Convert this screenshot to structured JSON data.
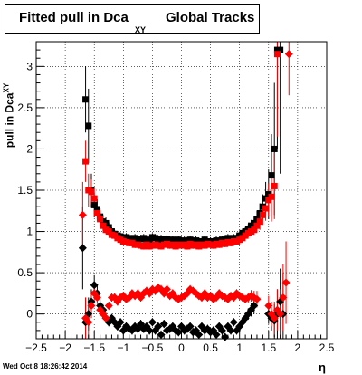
{
  "title": {
    "main": "Fitted pull in Dca",
    "sub": "XY",
    "rest": "Global Tracks"
  },
  "footer": "Wed Oct  8 18:26:42 2014",
  "colors": {
    "black_series": "#000000",
    "red_series": "#ff0000"
  },
  "chart_data": {
    "type": "scatter",
    "xlabel": "η",
    "ylabel_main": "pull in Dca",
    "ylabel_sub": "XY",
    "xlim": [
      -2.5,
      2.5
    ],
    "ylim": [
      -0.3,
      3.3
    ],
    "xticks": [
      -2.5,
      -2,
      -1.5,
      -1,
      -0.5,
      0,
      0.5,
      1,
      1.5,
      2,
      2.5
    ],
    "xtick_labels": [
      "−2.5",
      "−2",
      "−1.5",
      "−1",
      "−0.5",
      "0",
      "0.5",
      "1",
      "1.5",
      "2",
      "2.5"
    ],
    "yticks": [
      0,
      0.5,
      1,
      1.5,
      2,
      2.5,
      3
    ],
    "ytick_labels": [
      "0",
      "0.5",
      "1",
      "1.5",
      "2",
      "2.5",
      "3"
    ],
    "grid": true,
    "series": [
      {
        "marker": "square",
        "color": "#000000",
        "x": [
          -1.65,
          -1.6,
          -1.55,
          -1.5,
          -1.45,
          -1.4,
          -1.35,
          -1.3,
          -1.25,
          -1.2,
          -1.15,
          -1.1,
          -1.05,
          -1.0,
          -0.95,
          -0.9,
          -0.85,
          -0.8,
          -0.75,
          -0.7,
          -0.65,
          -0.6,
          -0.55,
          -0.5,
          -0.45,
          -0.4,
          -0.35,
          -0.3,
          -0.25,
          -0.2,
          -0.15,
          -0.1,
          -0.05,
          0.0,
          0.05,
          0.1,
          0.15,
          0.2,
          0.25,
          0.3,
          0.35,
          0.4,
          0.45,
          0.5,
          0.55,
          0.6,
          0.65,
          0.7,
          0.75,
          0.8,
          0.85,
          0.9,
          0.95,
          1.0,
          1.05,
          1.1,
          1.15,
          1.2,
          1.25,
          1.3,
          1.35,
          1.4,
          1.45,
          1.5,
          1.55,
          1.6,
          1.65,
          1.7
        ],
        "y": [
          2.6,
          2.28,
          1.5,
          1.32,
          1.27,
          1.18,
          1.12,
          1.1,
          1.05,
          1.0,
          0.97,
          0.95,
          0.94,
          0.92,
          0.93,
          0.92,
          0.9,
          0.92,
          0.9,
          0.91,
          0.92,
          0.9,
          0.88,
          0.93,
          0.92,
          0.9,
          0.91,
          0.9,
          0.91,
          0.89,
          0.9,
          0.88,
          0.9,
          0.88,
          0.89,
          0.88,
          0.9,
          0.87,
          0.89,
          0.88,
          0.87,
          0.9,
          0.86,
          0.88,
          0.87,
          0.89,
          0.88,
          0.9,
          0.9,
          0.92,
          0.9,
          0.92,
          0.92,
          0.95,
          0.98,
          1.0,
          1.03,
          1.07,
          1.1,
          1.15,
          1.22,
          1.3,
          1.4,
          1.45,
          1.68,
          2.0,
          3.2,
          3.2
        ],
        "yerr": [
          0.4,
          0.45,
          0.2,
          0.15,
          0.12,
          0.1,
          0.08,
          0.07,
          0.06,
          0.05,
          0.05,
          0.05,
          0.05,
          0.05,
          0.05,
          0.05,
          0.05,
          0.05,
          0.05,
          0.05,
          0.05,
          0.05,
          0.05,
          0.05,
          0.05,
          0.05,
          0.05,
          0.05,
          0.05,
          0.05,
          0.05,
          0.05,
          0.05,
          0.05,
          0.05,
          0.05,
          0.05,
          0.05,
          0.05,
          0.05,
          0.05,
          0.05,
          0.05,
          0.05,
          0.05,
          0.05,
          0.05,
          0.05,
          0.05,
          0.05,
          0.05,
          0.05,
          0.05,
          0.05,
          0.05,
          0.05,
          0.06,
          0.07,
          0.08,
          0.1,
          0.12,
          0.15,
          0.2,
          0.3,
          0.5,
          0.8,
          1.2,
          1.5
        ]
      },
      {
        "marker": "square",
        "color": "#ff0000",
        "x": [
          -1.65,
          -1.6,
          -1.55,
          -1.5,
          -1.45,
          -1.4,
          -1.35,
          -1.3,
          -1.25,
          -1.2,
          -1.15,
          -1.1,
          -1.05,
          -1.0,
          -0.95,
          -0.9,
          -0.85,
          -0.8,
          -0.75,
          -0.7,
          -0.65,
          -0.6,
          -0.55,
          -0.5,
          -0.45,
          -0.4,
          -0.35,
          -0.3,
          -0.25,
          -0.2,
          -0.15,
          -0.1,
          -0.05,
          0.0,
          0.05,
          0.1,
          0.15,
          0.2,
          0.25,
          0.3,
          0.35,
          0.4,
          0.45,
          0.5,
          0.55,
          0.6,
          0.65,
          0.7,
          0.75,
          0.8,
          0.85,
          0.9,
          0.95,
          1.0,
          1.05,
          1.1,
          1.15,
          1.2,
          1.25,
          1.3,
          1.35,
          1.4,
          1.45,
          1.5,
          1.55,
          1.6,
          1.65
        ],
        "y": [
          1.85,
          1.5,
          1.48,
          1.4,
          1.22,
          1.15,
          1.07,
          1.02,
          1.0,
          0.96,
          0.95,
          0.92,
          0.9,
          0.88,
          0.87,
          0.86,
          0.86,
          0.84,
          0.84,
          0.83,
          0.82,
          0.84,
          0.82,
          0.83,
          0.84,
          0.83,
          0.82,
          0.84,
          0.85,
          0.83,
          0.84,
          0.82,
          0.84,
          0.83,
          0.84,
          0.82,
          0.85,
          0.83,
          0.84,
          0.82,
          0.84,
          0.83,
          0.85,
          0.84,
          0.83,
          0.85,
          0.84,
          0.86,
          0.85,
          0.87,
          0.86,
          0.88,
          0.88,
          0.9,
          0.92,
          0.95,
          0.98,
          1.0,
          1.02,
          1.07,
          1.12,
          1.2,
          1.28,
          1.38,
          1.42,
          1.55,
          3.15
        ],
        "yerr": [
          0.25,
          0.2,
          0.15,
          0.12,
          0.1,
          0.08,
          0.06,
          0.05,
          0.05,
          0.04,
          0.04,
          0.04,
          0.04,
          0.04,
          0.04,
          0.04,
          0.04,
          0.04,
          0.04,
          0.04,
          0.04,
          0.04,
          0.04,
          0.04,
          0.04,
          0.04,
          0.04,
          0.04,
          0.04,
          0.04,
          0.04,
          0.04,
          0.04,
          0.04,
          0.04,
          0.04,
          0.04,
          0.04,
          0.04,
          0.04,
          0.04,
          0.04,
          0.04,
          0.04,
          0.04,
          0.04,
          0.04,
          0.04,
          0.04,
          0.04,
          0.04,
          0.04,
          0.04,
          0.04,
          0.04,
          0.04,
          0.05,
          0.05,
          0.06,
          0.08,
          0.1,
          0.12,
          0.15,
          0.2,
          0.3,
          0.4,
          1.0
        ]
      },
      {
        "marker": "diamond",
        "color": "#000000",
        "x": [
          -1.7,
          -1.65,
          -1.6,
          -1.55,
          -1.5,
          -1.45,
          -1.4,
          -1.35,
          -1.3,
          -1.25,
          -1.2,
          -1.15,
          -1.1,
          -1.05,
          -1.0,
          -0.95,
          -0.9,
          -0.85,
          -0.8,
          -0.75,
          -0.7,
          -0.65,
          -0.6,
          -0.55,
          -0.5,
          -0.45,
          -0.4,
          -0.35,
          -0.3,
          -0.25,
          -0.2,
          -0.15,
          -0.1,
          -0.05,
          0.0,
          0.05,
          0.1,
          0.15,
          0.2,
          0.25,
          0.3,
          0.35,
          0.4,
          0.45,
          0.5,
          0.55,
          0.6,
          0.65,
          0.7,
          0.75,
          0.8,
          0.85,
          0.9,
          0.95,
          1.0,
          1.05,
          1.1,
          1.15,
          1.2,
          1.25,
          1.5,
          1.55,
          1.6,
          1.65,
          1.7,
          1.75
        ],
        "y": [
          0.8,
          -0.1,
          0.0,
          0.15,
          0.35,
          0.25,
          0.1,
          0.05,
          -0.05,
          -0.1,
          -0.05,
          -0.1,
          -0.15,
          -0.1,
          -0.2,
          -0.15,
          -0.18,
          -0.2,
          -0.15,
          -0.18,
          -0.12,
          -0.18,
          -0.15,
          -0.2,
          -0.1,
          -0.2,
          -0.15,
          -0.25,
          -0.12,
          -0.2,
          -0.18,
          -0.15,
          -0.2,
          -0.22,
          -0.15,
          -0.2,
          -0.18,
          -0.15,
          -0.22,
          -0.2,
          -0.25,
          -0.15,
          -0.2,
          -0.18,
          -0.22,
          -0.2,
          -0.25,
          -0.15,
          -0.2,
          -0.28,
          -0.15,
          -0.2,
          -0.1,
          -0.2,
          -0.15,
          -0.1,
          -0.05,
          0.0,
          0.05,
          0.1,
          0.0,
          -0.05,
          -0.08,
          0.0,
          0.15,
          0.0
        ],
        "yerr": [
          0.5,
          0.3,
          0.2,
          0.15,
          0.12,
          0.1,
          0.08,
          0.07,
          0.06,
          0.05,
          0.05,
          0.05,
          0.05,
          0.05,
          0.05,
          0.05,
          0.05,
          0.05,
          0.05,
          0.05,
          0.05,
          0.05,
          0.05,
          0.05,
          0.05,
          0.05,
          0.05,
          0.05,
          0.05,
          0.05,
          0.05,
          0.05,
          0.05,
          0.05,
          0.05,
          0.05,
          0.05,
          0.05,
          0.05,
          0.05,
          0.05,
          0.05,
          0.05,
          0.05,
          0.05,
          0.05,
          0.05,
          0.05,
          0.05,
          0.05,
          0.05,
          0.05,
          0.05,
          0.05,
          0.05,
          0.05,
          0.06,
          0.07,
          0.08,
          0.1,
          0.12,
          0.15,
          0.2,
          0.3,
          0.4,
          0.5
        ]
      },
      {
        "marker": "diamond",
        "color": "#ff0000",
        "x": [
          -1.7,
          -1.65,
          -1.6,
          -1.55,
          -1.5,
          -1.45,
          -1.4,
          -1.35,
          -1.3,
          -1.25,
          -1.2,
          -1.15,
          -1.1,
          -1.05,
          -1.0,
          -0.95,
          -0.9,
          -0.85,
          -0.8,
          -0.75,
          -0.7,
          -0.65,
          -0.6,
          -0.55,
          -0.5,
          -0.45,
          -0.4,
          -0.35,
          -0.3,
          -0.25,
          -0.2,
          -0.15,
          -0.1,
          -0.05,
          0.0,
          0.05,
          0.1,
          0.15,
          0.2,
          0.25,
          0.3,
          0.35,
          0.4,
          0.45,
          0.5,
          0.55,
          0.6,
          0.65,
          0.7,
          0.75,
          0.8,
          0.85,
          0.9,
          0.95,
          1.0,
          1.05,
          1.1,
          1.15,
          1.2,
          1.25,
          1.3,
          1.5,
          1.55,
          1.6,
          1.65,
          1.7,
          1.75,
          1.8,
          1.85
        ],
        "y": [
          1.2,
          -0.05,
          -0.1,
          0.1,
          0.25,
          0.2,
          0.05,
          0.0,
          -0.05,
          0.1,
          0.2,
          0.2,
          0.15,
          0.2,
          0.22,
          0.18,
          0.2,
          0.25,
          0.22,
          0.25,
          0.2,
          0.25,
          0.28,
          0.25,
          0.3,
          0.28,
          0.32,
          0.3,
          0.25,
          0.3,
          0.22,
          0.25,
          0.2,
          0.18,
          0.2,
          0.22,
          0.25,
          0.3,
          0.28,
          0.25,
          0.22,
          0.2,
          0.25,
          0.2,
          0.22,
          0.18,
          0.2,
          0.25,
          0.22,
          0.2,
          0.18,
          0.22,
          0.2,
          0.25,
          0.22,
          0.2,
          0.18,
          0.2,
          0.22,
          0.2,
          0.18,
          0.1,
          0.0,
          -0.05,
          0.05,
          0.0,
          0.2,
          0.38,
          3.15
        ],
        "yerr": [
          0.4,
          0.25,
          0.2,
          0.15,
          0.1,
          0.08,
          0.07,
          0.06,
          0.05,
          0.05,
          0.05,
          0.05,
          0.05,
          0.05,
          0.05,
          0.05,
          0.05,
          0.05,
          0.05,
          0.05,
          0.05,
          0.05,
          0.05,
          0.05,
          0.05,
          0.05,
          0.05,
          0.05,
          0.05,
          0.05,
          0.05,
          0.05,
          0.05,
          0.05,
          0.05,
          0.05,
          0.05,
          0.05,
          0.05,
          0.05,
          0.05,
          0.05,
          0.05,
          0.05,
          0.05,
          0.05,
          0.05,
          0.05,
          0.05,
          0.05,
          0.05,
          0.05,
          0.05,
          0.05,
          0.05,
          0.05,
          0.05,
          0.06,
          0.07,
          0.08,
          0.1,
          0.12,
          0.15,
          0.2,
          0.25,
          0.3,
          0.4,
          0.5,
          0.5
        ]
      }
    ]
  }
}
